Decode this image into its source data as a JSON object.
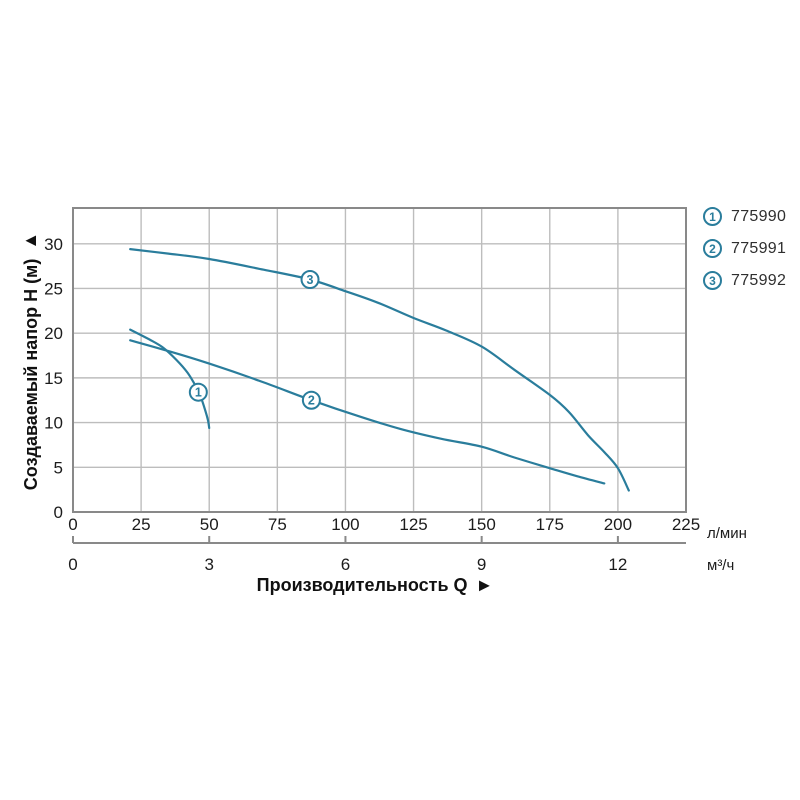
{
  "arrows": {
    "up": "▲",
    "right": "►"
  },
  "colors": {
    "curve": "#2a7d9c",
    "grid": "#bdbdbd",
    "border": "#898989",
    "text": "#1c1c1c"
  },
  "legend": {
    "items": [
      {
        "num": "1",
        "label": "775990"
      },
      {
        "num": "2",
        "label": "775991"
      },
      {
        "num": "3",
        "label": "775992"
      }
    ]
  },
  "chart_data": {
    "type": "line",
    "title": "",
    "x_axis": {
      "label": "Производительность Q",
      "units_primary": "л/мин",
      "units_secondary": "м³/ч",
      "primary_ticks": [
        0,
        25,
        50,
        75,
        100,
        125,
        150,
        175,
        200,
        225
      ],
      "secondary_ticks": [
        0,
        3,
        6,
        9,
        12
      ],
      "secondary_to_primary_factor": 16.6667,
      "xlim": [
        0,
        225
      ]
    },
    "y_axis": {
      "label": "Создаваемый напор Н (м)",
      "ticks": [
        0,
        5,
        10,
        15,
        20,
        25,
        30
      ],
      "ylim": [
        0,
        34
      ]
    },
    "grid": "on",
    "legend_position": "right-top",
    "series": [
      {
        "num": "1",
        "name": "775990",
        "marker_at": [
          46,
          13.4
        ],
        "points": [
          [
            21,
            20.4
          ],
          [
            28,
            19.3
          ],
          [
            33,
            18.4
          ],
          [
            38,
            17.0
          ],
          [
            42,
            15.6
          ],
          [
            45,
            14.1
          ],
          [
            47,
            12.8
          ],
          [
            48.7,
            11.2
          ],
          [
            49.6,
            10.2
          ],
          [
            50,
            9.4
          ]
        ]
      },
      {
        "num": "2",
        "name": "775991",
        "marker_at": [
          87.5,
          12.5
        ],
        "points": [
          [
            21,
            19.2
          ],
          [
            35,
            18.0
          ],
          [
            50,
            16.6
          ],
          [
            70,
            14.5
          ],
          [
            87.5,
            12.5
          ],
          [
            105,
            10.7
          ],
          [
            120,
            9.3
          ],
          [
            135,
            8.2
          ],
          [
            150,
            7.3
          ],
          [
            162,
            6.1
          ],
          [
            175,
            4.9
          ],
          [
            185,
            4.0
          ],
          [
            195,
            3.2
          ]
        ]
      },
      {
        "num": "3",
        "name": "775992",
        "marker_at": [
          87,
          26.0
        ],
        "points": [
          [
            21,
            29.4
          ],
          [
            35,
            28.9
          ],
          [
            50,
            28.3
          ],
          [
            70,
            27.1
          ],
          [
            87,
            26.0
          ],
          [
            100,
            24.7
          ],
          [
            112,
            23.4
          ],
          [
            125,
            21.7
          ],
          [
            137,
            20.3
          ],
          [
            150,
            18.5
          ],
          [
            162,
            15.9
          ],
          [
            175,
            13.1
          ],
          [
            182,
            11.2
          ],
          [
            189,
            8.6
          ],
          [
            195,
            6.7
          ],
          [
            200,
            4.9
          ],
          [
            204,
            2.4
          ]
        ]
      }
    ]
  }
}
